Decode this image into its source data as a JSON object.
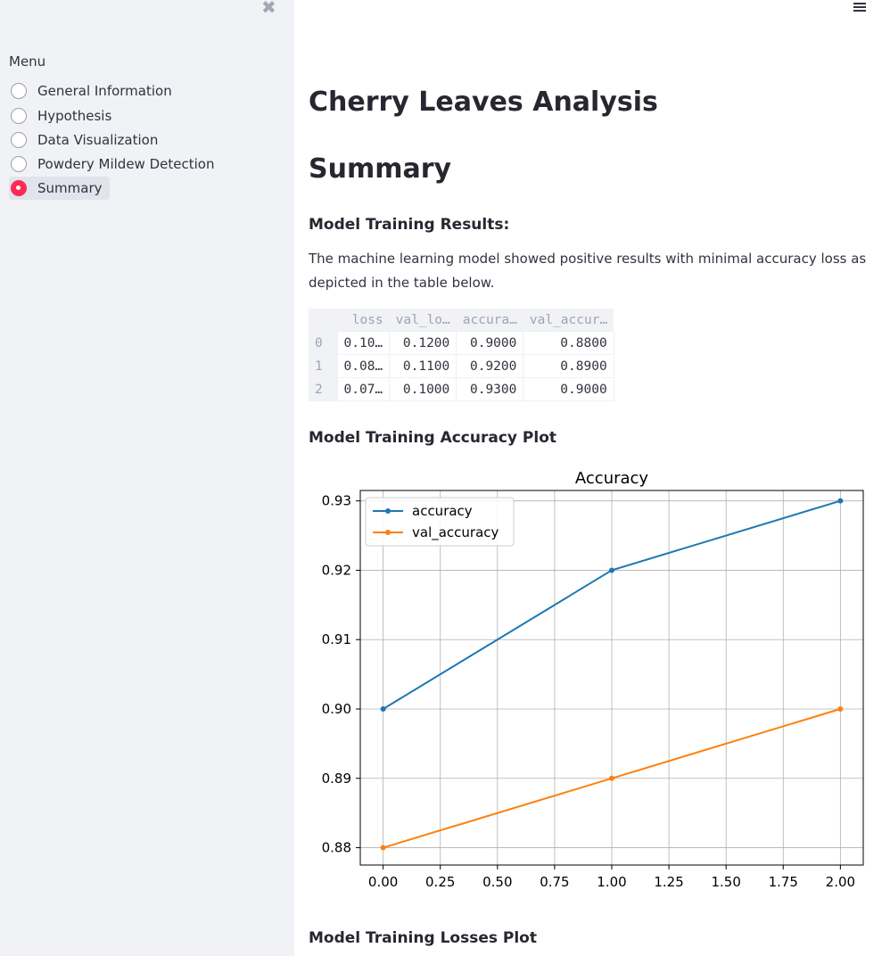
{
  "sidebar": {
    "close_icon": "close-icon",
    "menu_title": "Menu",
    "items": [
      {
        "label": "General Information",
        "selected": false
      },
      {
        "label": "Hypothesis",
        "selected": false
      },
      {
        "label": "Data Visualization",
        "selected": false
      },
      {
        "label": "Powdery Mildew Detection",
        "selected": false
      },
      {
        "label": "Summary",
        "selected": true
      }
    ],
    "accent_color": "#ff2b55"
  },
  "header": {
    "menu_icon": "hamburger-menu-icon"
  },
  "main": {
    "title": "Cherry Leaves Analysis",
    "heading": "Summary",
    "results_heading": "Model Training Results:",
    "results_text": "The machine learning model showed positive results with minimal accuracy loss as depicted in the table below.",
    "table": {
      "columns": [
        "loss",
        "val_lo…",
        "accura…",
        "val_accur…"
      ],
      "rows": [
        {
          "index": "0",
          "cells": [
            "0.10…",
            "0.1200",
            "0.9000",
            "0.8800"
          ]
        },
        {
          "index": "1",
          "cells": [
            "0.08…",
            "0.1100",
            "0.9200",
            "0.8900"
          ]
        },
        {
          "index": "2",
          "cells": [
            "0.07…",
            "0.1000",
            "0.9300",
            "0.9000"
          ]
        }
      ]
    },
    "accuracy_plot_heading": "Model Training Accuracy Plot",
    "losses_plot_heading": "Model Training Losses Plot"
  },
  "chart_data": {
    "type": "line",
    "title": "Accuracy",
    "xlabel": "",
    "ylabel": "",
    "x": [
      0,
      1,
      2
    ],
    "xlim": [
      -0.1,
      2.1
    ],
    "ylim": [
      0.8775,
      0.9315
    ],
    "xticks": [
      "0.00",
      "0.25",
      "0.50",
      "0.75",
      "1.00",
      "1.25",
      "1.50",
      "1.75",
      "2.00"
    ],
    "yticks": [
      "0.88",
      "0.89",
      "0.90",
      "0.91",
      "0.92",
      "0.93"
    ],
    "grid": true,
    "legend": "upper-left",
    "series": [
      {
        "name": "accuracy",
        "values": [
          0.9,
          0.92,
          0.93
        ],
        "color": "#1f77b4"
      },
      {
        "name": "val_accuracy",
        "values": [
          0.88,
          0.89,
          0.9
        ],
        "color": "#ff7f0e"
      }
    ]
  }
}
